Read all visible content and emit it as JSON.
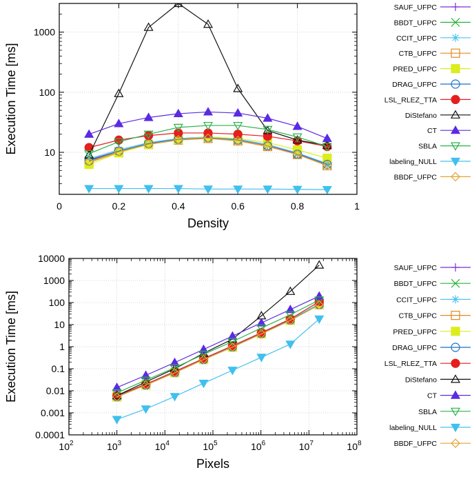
{
  "chart_data": [
    {
      "type": "line",
      "xlabel": "Density",
      "ylabel": "Execution Time [ms]",
      "xscale": "linear",
      "yscale": "log",
      "xlim": [
        0,
        1
      ],
      "ylim": [
        2,
        3000
      ],
      "x_ticks": [
        0,
        0.2,
        0.4,
        0.6,
        0.8,
        1
      ],
      "x_tick_labels": [
        "0",
        "0.2",
        "0.4",
        "0.6",
        "0.8",
        "1"
      ],
      "y_ticks": [
        10,
        100,
        1000
      ],
      "y_tick_labels": [
        "10",
        "100",
        "1000"
      ],
      "grid": true,
      "legend_position": "right",
      "x": [
        0.1,
        0.2,
        0.3,
        0.4,
        0.5,
        0.6,
        0.7,
        0.8,
        0.9
      ],
      "series": [
        {
          "name": "SAUF_UFPC",
          "values": [
            7.5,
            10.5,
            14,
            16.5,
            17.5,
            16,
            13,
            9.5,
            6.3
          ]
        },
        {
          "name": "BBDT_UFPC",
          "values": [
            7.3,
            10.3,
            13.8,
            16.3,
            17.3,
            15.8,
            12.8,
            9.3,
            6.2
          ]
        },
        {
          "name": "CCIT_UFPC",
          "values": [
            7.8,
            11,
            14.5,
            17,
            18,
            16.5,
            13.5,
            9.8,
            6.5
          ]
        },
        {
          "name": "CTB_UFPC",
          "values": [
            6.8,
            10,
            13.5,
            16,
            17,
            15.5,
            12.5,
            9.2,
            6.0
          ]
        },
        {
          "name": "PRED_UFPC",
          "values": [
            6.3,
            9.8,
            13.5,
            16.5,
            18,
            17,
            14.5,
            11,
            8.0
          ]
        },
        {
          "name": "DRAG_UFPC",
          "values": [
            7.2,
            10.5,
            14,
            16.5,
            17.5,
            16,
            12.8,
            9.3,
            6.3
          ]
        },
        {
          "name": "LSL_RLEZ_TTA",
          "values": [
            12,
            16,
            19,
            21,
            21,
            20,
            18.5,
            15.5,
            12.5
          ]
        },
        {
          "name": "DiStefano",
          "values": [
            9,
            95,
            1200,
            3000,
            1350,
            115,
            23,
            16,
            13
          ]
        },
        {
          "name": "CT",
          "values": [
            20,
            30,
            38,
            44,
            47,
            45,
            37,
            27,
            17
          ]
        },
        {
          "name": "SBLA",
          "values": [
            9.5,
            15,
            20,
            26,
            28,
            28,
            24,
            18,
            12.5
          ]
        },
        {
          "name": "labeling_NULL",
          "values": [
            2.5,
            2.5,
            2.5,
            2.5,
            2.45,
            2.45,
            2.45,
            2.42,
            2.4
          ]
        },
        {
          "name": "BBDF_UFPC",
          "values": [
            7,
            10.2,
            13.6,
            16.2,
            17.2,
            15.7,
            12.7,
            9.2,
            6.1
          ]
        }
      ]
    },
    {
      "type": "line",
      "xlabel": "Pixels",
      "ylabel": "Execution Time [ms]",
      "xscale": "log",
      "yscale": "log",
      "xlim": [
        100,
        100000000
      ],
      "ylim": [
        0.0001,
        10000
      ],
      "x_tick_bases": [
        "10",
        "10",
        "10",
        "10",
        "10",
        "10",
        "10"
      ],
      "x_tick_exps": [
        "2",
        "3",
        "4",
        "5",
        "6",
        "7",
        "8"
      ],
      "y_tick_labels": [
        "0.0001",
        "0.001",
        "0.01",
        "0.1",
        "1",
        "10",
        "100",
        "1000",
        "10000"
      ],
      "grid": true,
      "legend_position": "right",
      "x": [
        1000,
        4000,
        16000,
        64000,
        256000,
        1024000,
        4096000,
        16384000
      ],
      "series": [
        {
          "name": "SAUF_UFPC",
          "values": [
            0.0055,
            0.019,
            0.07,
            0.27,
            1.0,
            4.0,
            16,
            85
          ]
        },
        {
          "name": "BBDT_UFPC",
          "values": [
            0.0056,
            0.019,
            0.07,
            0.27,
            1.0,
            4.0,
            16,
            80
          ]
        },
        {
          "name": "CCIT_UFPC",
          "values": [
            0.0058,
            0.02,
            0.072,
            0.28,
            1.05,
            4.1,
            17,
            88
          ]
        },
        {
          "name": "CTB_UFPC",
          "values": [
            0.0053,
            0.018,
            0.066,
            0.26,
            0.95,
            3.8,
            15.5,
            80
          ]
        },
        {
          "name": "PRED_UFPC",
          "values": [
            0.0054,
            0.018,
            0.066,
            0.26,
            0.95,
            3.8,
            15.5,
            82
          ]
        },
        {
          "name": "DRAG_UFPC",
          "values": [
            0.0054,
            0.018,
            0.067,
            0.26,
            0.97,
            3.9,
            16,
            80
          ]
        },
        {
          "name": "LSL_RLEZ_TTA",
          "values": [
            0.006,
            0.02,
            0.075,
            0.29,
            1.1,
            4.3,
            18,
            110
          ]
        },
        {
          "name": "DiStefano",
          "values": [
            0.006,
            0.025,
            0.1,
            0.5,
            2.2,
            25,
            320,
            5000
          ]
        },
        {
          "name": "CT",
          "values": [
            0.014,
            0.05,
            0.19,
            0.75,
            3.0,
            12,
            48,
            195
          ]
        },
        {
          "name": "SBLA",
          "values": [
            0.008,
            0.03,
            0.11,
            0.45,
            1.7,
            7,
            28,
            130
          ]
        },
        {
          "name": "labeling_NULL",
          "values": [
            0.0005,
            0.0015,
            0.0055,
            0.022,
            0.085,
            0.33,
            1.3,
            18
          ]
        },
        {
          "name": "BBDF_UFPC",
          "values": [
            0.0052,
            0.018,
            0.065,
            0.26,
            0.95,
            3.8,
            15.5,
            78
          ]
        }
      ]
    }
  ],
  "legend": [
    {
      "name": "SAUF_UFPC",
      "marker": "plus",
      "color": "#7b2fd6"
    },
    {
      "name": "BBDT_UFPC",
      "marker": "x",
      "color": "#2ab13a"
    },
    {
      "name": "CCIT_UFPC",
      "marker": "star",
      "color": "#4ac3f0"
    },
    {
      "name": "CTB_UFPC",
      "marker": "square",
      "color": "#e08a1e"
    },
    {
      "name": "PRED_UFPC",
      "marker": "square-filled",
      "color": "#dced1c"
    },
    {
      "name": "DRAG_UFPC",
      "marker": "circle",
      "color": "#1872c9"
    },
    {
      "name": "LSL_RLEZ_TTA",
      "marker": "circle-filled",
      "color": "#e51e1e"
    },
    {
      "name": "DiStefano",
      "marker": "triangle",
      "color": "#111111"
    },
    {
      "name": "CT",
      "marker": "triangle-filled",
      "color": "#5a2be2"
    },
    {
      "name": "SBLA",
      "marker": "triangle-down",
      "color": "#2bb24a"
    },
    {
      "name": "labeling_NULL",
      "marker": "triangle-down-filled",
      "color": "#40c0ee"
    },
    {
      "name": "BBDF_UFPC",
      "marker": "diamond",
      "color": "#e5a233"
    }
  ]
}
